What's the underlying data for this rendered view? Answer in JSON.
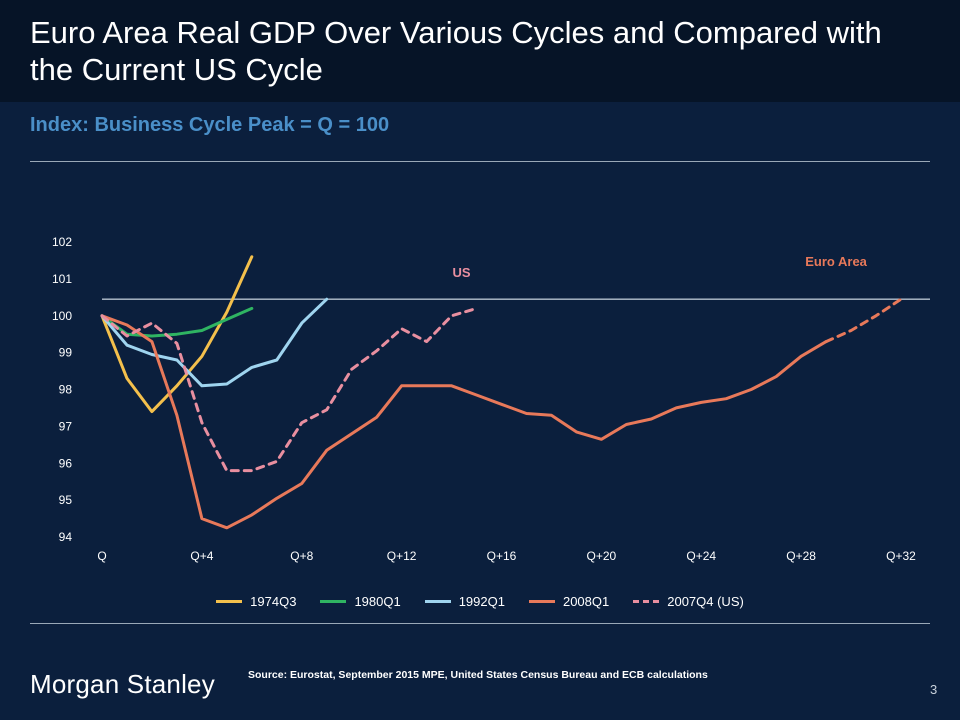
{
  "header": {
    "title": "Euro Area Real GDP Over Various Cycles and Compared with the Current US Cycle",
    "subtitle": "Index: Business Cycle Peak = Q = 100"
  },
  "footer": {
    "logo": "Morgan Stanley",
    "source": "Source: Eurostat, September 2015 MPE, United States Census Bureau and ECB calculations",
    "page_number": "3"
  },
  "chart_data": {
    "type": "line",
    "title": "",
    "xlabel": "",
    "ylabel": "",
    "xlim": [
      0,
      32
    ],
    "ylim": [
      94,
      102
    ],
    "x_ticks": [
      {
        "x": 0,
        "label": "Q"
      },
      {
        "x": 4,
        "label": "Q+4"
      },
      {
        "x": 8,
        "label": "Q+8"
      },
      {
        "x": 12,
        "label": "Q+12"
      },
      {
        "x": 16,
        "label": "Q+16"
      },
      {
        "x": 20,
        "label": "Q+20"
      },
      {
        "x": 24,
        "label": "Q+24"
      },
      {
        "x": 28,
        "label": "Q+28"
      },
      {
        "x": 32,
        "label": "Q+32"
      }
    ],
    "y_ticks": [
      94,
      95,
      96,
      97,
      98,
      99,
      100,
      101,
      102
    ],
    "grid": false,
    "legend_position": "bottom",
    "reference_line": {
      "y": 100.45,
      "color": "#b6c2cf"
    },
    "annotations": [
      {
        "text": "US",
        "x": 14.4,
        "y": 101.05,
        "color": "#e98fa0"
      },
      {
        "text": "Euro Area",
        "x": 29.4,
        "y": 101.35,
        "color": "#e8795a"
      }
    ],
    "series": [
      {
        "name": "1974Q3",
        "color": "#f4c04c",
        "style": "solid",
        "points": [
          [
            0,
            100
          ],
          [
            1,
            98.3
          ],
          [
            2,
            97.4
          ],
          [
            3,
            98.1
          ],
          [
            4,
            98.9
          ],
          [
            5,
            100.1
          ],
          [
            6,
            101.6
          ]
        ]
      },
      {
        "name": "1980Q1",
        "color": "#2fb462",
        "style": "solid",
        "points": [
          [
            0,
            100
          ],
          [
            1,
            99.5
          ],
          [
            2,
            99.45
          ],
          [
            3,
            99.5
          ],
          [
            4,
            99.6
          ],
          [
            5,
            99.9
          ],
          [
            6,
            100.2
          ]
        ]
      },
      {
        "name": "1992Q1",
        "color": "#9fd4ef",
        "style": "solid",
        "points": [
          [
            0,
            100
          ],
          [
            1,
            99.2
          ],
          [
            2,
            98.95
          ],
          [
            3,
            98.8
          ],
          [
            4,
            98.1
          ],
          [
            5,
            98.15
          ],
          [
            6,
            98.6
          ],
          [
            7,
            98.8
          ],
          [
            8,
            99.8
          ],
          [
            9,
            100.45
          ]
        ]
      },
      {
        "name": "2008Q1",
        "color": "#e8795a",
        "style": "solid",
        "points": [
          [
            0,
            100
          ],
          [
            1,
            99.75
          ],
          [
            2,
            99.3
          ],
          [
            3,
            97.3
          ],
          [
            4,
            94.5
          ],
          [
            5,
            94.25
          ],
          [
            6,
            94.6
          ],
          [
            7,
            95.05
          ],
          [
            8,
            95.45
          ],
          [
            9,
            96.35
          ],
          [
            10,
            96.8
          ],
          [
            11,
            97.25
          ],
          [
            12,
            98.1
          ],
          [
            13,
            98.1
          ],
          [
            14,
            98.1
          ],
          [
            15,
            97.85
          ],
          [
            16,
            97.6
          ],
          [
            17,
            97.35
          ],
          [
            18,
            97.3
          ],
          [
            19,
            96.85
          ],
          [
            20,
            96.65
          ],
          [
            21,
            97.05
          ],
          [
            22,
            97.2
          ],
          [
            23,
            97.5
          ],
          [
            24,
            97.65
          ],
          [
            25,
            97.75
          ],
          [
            26,
            98.0
          ],
          [
            27,
            98.35
          ],
          [
            28,
            98.9
          ],
          [
            29,
            99.3
          ]
        ]
      },
      {
        "name": "2007Q4 (US)",
        "color": "#e98fa0",
        "style": "dashed",
        "points": [
          [
            0,
            100
          ],
          [
            1,
            99.45
          ],
          [
            2,
            99.8
          ],
          [
            3,
            99.25
          ],
          [
            4,
            97.1
          ],
          [
            5,
            95.8
          ],
          [
            6,
            95.8
          ],
          [
            7,
            96.05
          ],
          [
            8,
            97.1
          ],
          [
            9,
            97.45
          ],
          [
            10,
            98.55
          ],
          [
            11,
            99.05
          ],
          [
            12,
            99.65
          ],
          [
            13,
            99.3
          ],
          [
            14,
            100.0
          ],
          [
            15,
            100.2
          ]
        ]
      },
      {
        "name": "",
        "color": "#e8795a",
        "style": "dashed",
        "points": [
          [
            29,
            99.3
          ],
          [
            30,
            99.6
          ],
          [
            31,
            100.0
          ],
          [
            32,
            100.45
          ]
        ]
      }
    ]
  }
}
